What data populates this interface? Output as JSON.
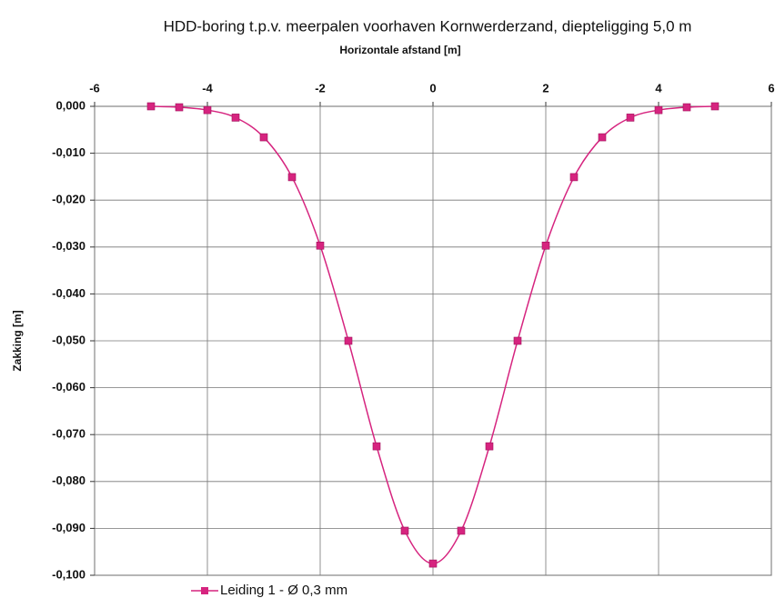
{
  "chart_data": {
    "type": "line",
    "title": "HDD-boring t.p.v. meerpalen voorhaven Kornwerderzand, diepteligging 5,0 m",
    "x_label": "Horizontale afstand [m]",
    "y_label": "Zakking [m]",
    "x": [
      -5,
      -4.5,
      -4,
      -3.5,
      -3,
      -2.5,
      -2,
      -1.5,
      -1,
      -0.5,
      0,
      0.5,
      1,
      1.5,
      2,
      2.5,
      3,
      3.5,
      4,
      4.5,
      5
    ],
    "series": [
      {
        "name": "Leiding 1 -  Ø 0,3 mm",
        "color": "#d6247f",
        "values": [
          0,
          -0.0002,
          -0.0008,
          -0.0024,
          -0.0066,
          -0.0151,
          -0.0297,
          -0.05,
          -0.0725,
          -0.0905,
          -0.0975,
          -0.0905,
          -0.0725,
          -0.05,
          -0.0297,
          -0.0151,
          -0.0066,
          -0.0024,
          -0.0008,
          -0.0002,
          0
        ]
      }
    ],
    "xlim": [
      -6,
      6
    ],
    "xticks": [
      -6,
      -4,
      -2,
      0,
      2,
      4,
      6
    ],
    "ylim": [
      -0.1,
      0
    ],
    "yticks": [
      {
        "value": 0,
        "label": "0,000"
      },
      {
        "value": -0.01,
        "label": "-0,010"
      },
      {
        "value": -0.02,
        "label": "-0,020"
      },
      {
        "value": -0.03,
        "label": "-0,030"
      },
      {
        "value": -0.04,
        "label": "-0,040"
      },
      {
        "value": -0.05,
        "label": "-0,050"
      },
      {
        "value": -0.06,
        "label": "-0,060"
      },
      {
        "value": -0.07,
        "label": "-0,070"
      },
      {
        "value": -0.08,
        "label": "-0,080"
      },
      {
        "value": -0.09,
        "label": "-0,090"
      },
      {
        "value": -0.1,
        "label": "-0,100"
      }
    ],
    "grid": true,
    "legend": "bottom"
  }
}
